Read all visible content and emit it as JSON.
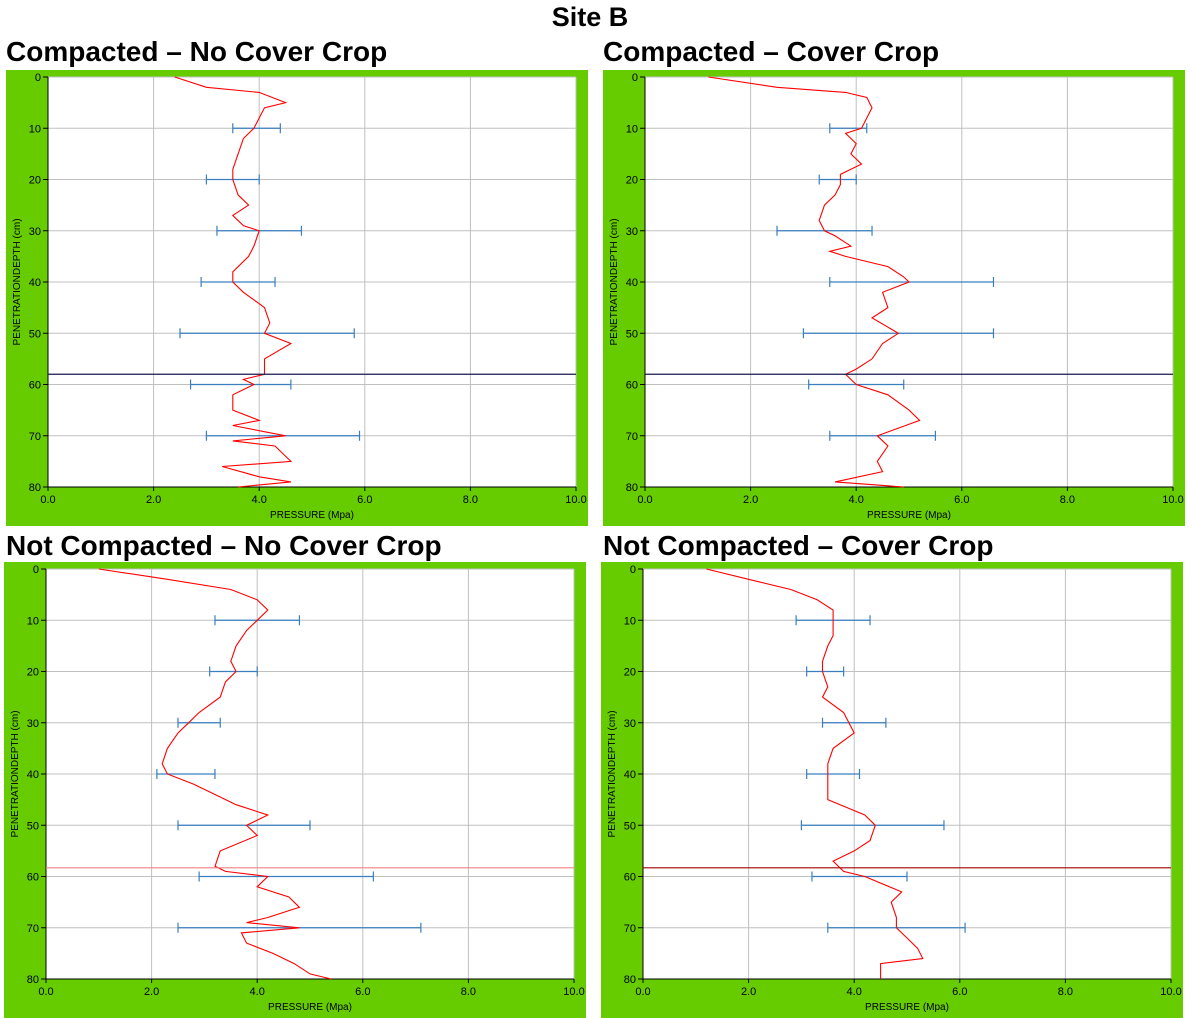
{
  "title": "Site B",
  "colors": {
    "frame": "#66cc00",
    "curve": "#ff0000",
    "errorbar": "#3a7fc0",
    "grid": "#c0c0c0"
  },
  "chart_data": [
    {
      "type": "line",
      "title": "Compacted – No Cover Crop",
      "xlabel": "PRESSURE  (Mpa)",
      "ylabel": "PENETRATIONDEPTH (cm)",
      "xlim": [
        0,
        10
      ],
      "ylim": [
        0,
        80
      ],
      "y_inverted": true,
      "grid": true,
      "xticks": [
        "0.0",
        "2.0",
        "4.0",
        "6.0",
        "8.0",
        "10.0"
      ],
      "yticks": [
        "0",
        "10",
        "20",
        "30",
        "40",
        "50",
        "60",
        "70",
        "80"
      ],
      "reference_line_depth": 58,
      "reference_line_color": "#1a1a50",
      "curve": {
        "depth": [
          0,
          2,
          3,
          5,
          6,
          8,
          10,
          12,
          15,
          18,
          20,
          23,
          25,
          27,
          29,
          30,
          33,
          35,
          38,
          40,
          42,
          45,
          48,
          50,
          52,
          55,
          58,
          59,
          60,
          62,
          65,
          67,
          68,
          70,
          71,
          72,
          75,
          76,
          78,
          79,
          80
        ],
        "pressure": [
          2.4,
          3.0,
          4.0,
          4.5,
          4.1,
          4.0,
          3.9,
          3.7,
          3.6,
          3.5,
          3.5,
          3.6,
          3.8,
          3.5,
          3.7,
          4.0,
          3.9,
          3.8,
          3.5,
          3.5,
          3.7,
          4.1,
          4.2,
          4.1,
          4.6,
          4.1,
          4.1,
          3.7,
          3.9,
          3.5,
          3.5,
          4.0,
          3.5,
          4.5,
          3.5,
          4.3,
          4.6,
          3.3,
          4.0,
          4.6,
          3.6
        ]
      },
      "error_bars": [
        {
          "depth": 10,
          "low": 3.5,
          "high": 4.4
        },
        {
          "depth": 20,
          "low": 3.0,
          "high": 4.0
        },
        {
          "depth": 30,
          "low": 3.2,
          "high": 4.8
        },
        {
          "depth": 40,
          "low": 2.9,
          "high": 4.3
        },
        {
          "depth": 50,
          "low": 2.5,
          "high": 5.8
        },
        {
          "depth": 60,
          "low": 2.7,
          "high": 4.6
        },
        {
          "depth": 70,
          "low": 3.0,
          "high": 5.9
        }
      ]
    },
    {
      "type": "line",
      "title": "Compacted – Cover Crop",
      "xlabel": "PRESSURE  (Mpa)",
      "ylabel": "PENETRATIONDEPTH (cm)",
      "xlim": [
        0,
        10
      ],
      "ylim": [
        0,
        80
      ],
      "y_inverted": true,
      "grid": true,
      "xticks": [
        "0.0",
        "2.0",
        "4.0",
        "6.0",
        "8.0",
        "10.0"
      ],
      "yticks": [
        "0",
        "10",
        "20",
        "30",
        "40",
        "50",
        "60",
        "70",
        "80"
      ],
      "reference_line_depth": 58,
      "reference_line_color": "#1a1a50",
      "curve": {
        "depth": [
          0,
          2,
          3,
          4,
          6,
          8,
          10,
          11,
          13,
          15,
          17,
          19,
          21,
          23,
          25,
          28,
          30,
          31,
          33,
          34,
          35,
          37,
          39,
          40,
          42,
          45,
          47,
          50,
          52,
          55,
          57,
          58,
          60,
          62,
          65,
          67,
          70,
          72,
          75,
          77,
          79,
          80
        ],
        "pressure": [
          1.2,
          2.5,
          3.8,
          4.2,
          4.3,
          4.2,
          4.1,
          3.8,
          4.0,
          3.9,
          4.1,
          3.7,
          3.7,
          3.6,
          3.4,
          3.3,
          3.4,
          3.6,
          3.9,
          3.5,
          3.8,
          4.6,
          4.9,
          5.0,
          4.5,
          4.6,
          4.3,
          4.8,
          4.5,
          4.3,
          4.0,
          3.8,
          4.0,
          4.6,
          5.0,
          5.2,
          4.4,
          4.6,
          4.4,
          4.5,
          3.6,
          4.9
        ]
      },
      "error_bars": [
        {
          "depth": 10,
          "low": 3.5,
          "high": 4.2
        },
        {
          "depth": 20,
          "low": 3.3,
          "high": 4.0
        },
        {
          "depth": 30,
          "low": 2.5,
          "high": 4.3
        },
        {
          "depth": 40,
          "low": 3.5,
          "high": 6.6
        },
        {
          "depth": 50,
          "low": 3.0,
          "high": 6.6
        },
        {
          "depth": 60,
          "low": 3.1,
          "high": 4.9
        },
        {
          "depth": 70,
          "low": 3.5,
          "high": 5.5
        }
      ]
    },
    {
      "type": "line",
      "title": "Not Compacted – No Cover Crop",
      "xlabel": "PRESSURE  (Mpa)",
      "ylabel": "PENETRATIONDEPTH (cm)",
      "xlim": [
        0,
        10
      ],
      "ylim": [
        0,
        80
      ],
      "y_inverted": true,
      "grid": true,
      "xticks": [
        "0.0",
        "2.0",
        "4.0",
        "6.0",
        "8.0",
        "10.0"
      ],
      "yticks": [
        "0",
        "10",
        "20",
        "30",
        "40",
        "50",
        "60",
        "70",
        "80"
      ],
      "reference_line_depth": 58.3,
      "reference_line_color": "#f08080",
      "curve": {
        "depth": [
          0,
          2,
          4,
          6,
          8,
          10,
          12,
          15,
          18,
          20,
          22,
          25,
          28,
          30,
          32,
          35,
          38,
          40,
          42,
          44,
          46,
          48,
          50,
          52,
          55,
          58,
          59,
          60,
          62,
          64,
          66,
          68,
          69,
          70,
          71,
          73,
          75,
          77,
          79,
          80
        ],
        "pressure": [
          1.0,
          2.3,
          3.5,
          4.0,
          4.2,
          4.0,
          3.8,
          3.6,
          3.5,
          3.6,
          3.4,
          3.3,
          2.9,
          2.7,
          2.5,
          2.3,
          2.2,
          2.3,
          2.8,
          3.2,
          3.6,
          4.2,
          3.8,
          4.0,
          3.3,
          3.2,
          3.4,
          4.2,
          4.0,
          4.6,
          4.8,
          4.2,
          3.8,
          4.8,
          3.7,
          3.8,
          4.3,
          4.7,
          5.0,
          5.4
        ]
      },
      "error_bars": [
        {
          "depth": 10,
          "low": 3.2,
          "high": 4.8
        },
        {
          "depth": 20,
          "low": 3.1,
          "high": 4.0
        },
        {
          "depth": 30,
          "low": 2.5,
          "high": 3.3
        },
        {
          "depth": 40,
          "low": 2.1,
          "high": 3.2
        },
        {
          "depth": 50,
          "low": 2.5,
          "high": 5.0
        },
        {
          "depth": 60,
          "low": 2.9,
          "high": 6.2
        },
        {
          "depth": 70,
          "low": 2.5,
          "high": 7.1
        }
      ]
    },
    {
      "type": "line",
      "title": "Not Compacted – Cover Crop",
      "xlabel": "PRESSURE  (Mpa)",
      "ylabel": "PENETRATIONDEPTH (cm)",
      "xlim": [
        0,
        10
      ],
      "ylim": [
        0,
        80
      ],
      "y_inverted": true,
      "grid": true,
      "xticks": [
        "0.0",
        "2.0",
        "4.0",
        "6.0",
        "8.0",
        "10.0"
      ],
      "yticks": [
        "0",
        "10",
        "20",
        "30",
        "40",
        "50",
        "60",
        "70",
        "80"
      ],
      "reference_line_depth": 58.3,
      "reference_line_color": "#a00000",
      "curve": {
        "depth": [
          0,
          2,
          4,
          6,
          8,
          10,
          13,
          15,
          18,
          20,
          23,
          25,
          28,
          30,
          32,
          35,
          38,
          40,
          45,
          48,
          50,
          53,
          55,
          57,
          59,
          60,
          63,
          65,
          68,
          70,
          72,
          74,
          76,
          77,
          80
        ],
        "pressure": [
          1.2,
          2.0,
          2.8,
          3.3,
          3.6,
          3.6,
          3.6,
          3.5,
          3.4,
          3.4,
          3.5,
          3.4,
          3.8,
          3.9,
          4.0,
          3.6,
          3.5,
          3.5,
          3.5,
          4.2,
          4.4,
          4.3,
          4.0,
          3.6,
          3.8,
          4.2,
          4.9,
          4.7,
          4.8,
          4.8,
          5.0,
          5.2,
          5.3,
          4.5,
          4.5
        ]
      },
      "error_bars": [
        {
          "depth": 10,
          "low": 2.9,
          "high": 4.3
        },
        {
          "depth": 20,
          "low": 3.1,
          "high": 3.8
        },
        {
          "depth": 30,
          "low": 3.4,
          "high": 4.6
        },
        {
          "depth": 40,
          "low": 3.1,
          "high": 4.1
        },
        {
          "depth": 50,
          "low": 3.0,
          "high": 5.7
        },
        {
          "depth": 60,
          "low": 3.2,
          "high": 5.0
        },
        {
          "depth": 70,
          "low": 3.5,
          "high": 6.1
        }
      ]
    }
  ]
}
